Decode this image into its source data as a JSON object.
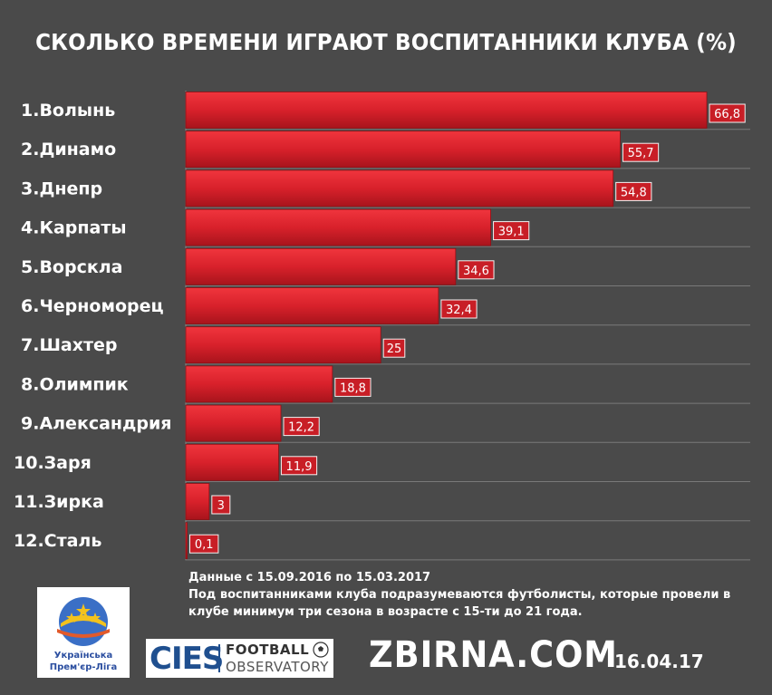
{
  "chart_data": {
    "type": "bar",
    "orientation": "horizontal",
    "title": "СКОЛЬКО ВРЕМЕНИ ИГРАЮТ ВОСПИТАННИКИ КЛУБА (%)",
    "categories": [
      "1.Волынь",
      "2.Динамо",
      "3.Днепр",
      "4.Карпаты",
      "5.Ворскла",
      "6.Черноморец",
      "7.Шахтер",
      "8.Олимпик",
      "9.Александрия",
      "10.Заря",
      "11.Зирка",
      "12.Сталь"
    ],
    "values": [
      66.8,
      55.7,
      54.8,
      39.1,
      34.6,
      32.4,
      25,
      18.8,
      12.2,
      11.9,
      3,
      0.1
    ],
    "value_labels": [
      "66,8",
      "55,7",
      "54,8",
      "39,1",
      "34,6",
      "32,4",
      "25",
      "18,8",
      "12,2",
      "11,9",
      "3",
      "0,1"
    ],
    "xlim": [
      0,
      72
    ],
    "grid": true,
    "bar_color": "#d8212b",
    "label_box_color": "#c81e26"
  },
  "notes": {
    "line1": "Данные с 15.09.2016 по 15.03.2017",
    "line2": "Под воспитанниками клуба подразумеваются футболисты, которые провели в",
    "line3": "клубе минимум три сезона в возрасте с 15-ти до 21 года."
  },
  "logos": {
    "upl_line1": "Українська",
    "upl_line2": "Прем'єр-Ліга",
    "cies": "CIES",
    "football": "FOOTBALL",
    "observatory": "OBSERVATORY"
  },
  "footer": {
    "site": "ZBIRNA.COM",
    "date": "16.04.17"
  }
}
